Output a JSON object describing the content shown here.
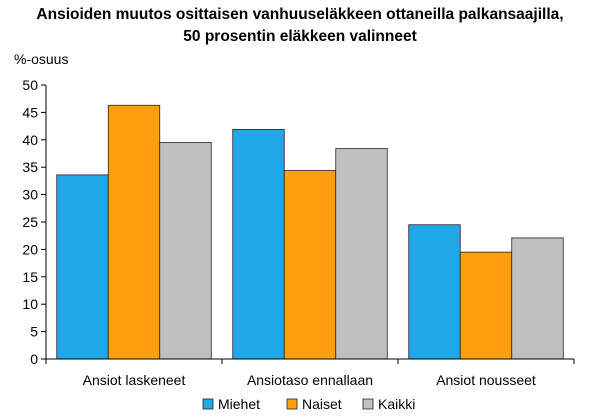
{
  "chart_data": {
    "type": "bar",
    "title_lines": [
      "Ansioiden muutos osittaisen vanhuuseläkkeen ottaneilla palkansaajilla,",
      "50 prosentin eläkkeen valinneet"
    ],
    "ylabel": "%-osuus",
    "xlabel": "",
    "ylim": [
      0,
      50
    ],
    "yticks": [
      0,
      5,
      10,
      15,
      20,
      25,
      30,
      35,
      40,
      45,
      50
    ],
    "categories": [
      "Ansiot laskeneet",
      "Ansiotaso ennallaan",
      "Ansiot nousseet"
    ],
    "series": [
      {
        "name": "Miehet",
        "color": "#1fa8e8",
        "values": [
          33.6,
          41.9,
          24.5
        ]
      },
      {
        "name": "Naiset",
        "color": "#ff9e0f",
        "values": [
          46.3,
          34.4,
          19.5
        ]
      },
      {
        "name": "Kaikki",
        "color": "#bfbfbf",
        "values": [
          39.5,
          38.4,
          22.1
        ]
      }
    ],
    "legend_position": "bottom",
    "grid": false
  }
}
